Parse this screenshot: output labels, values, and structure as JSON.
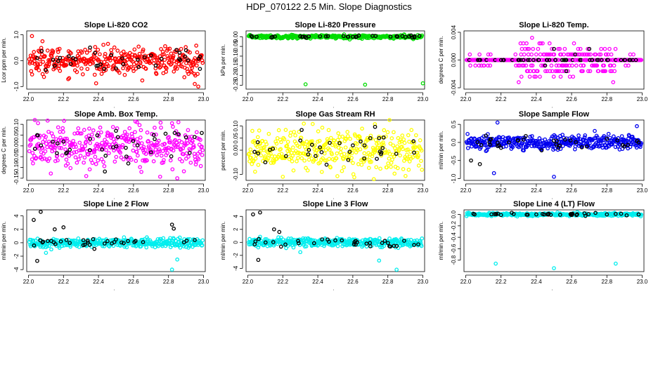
{
  "figure_title": "HDP_070122  2.5 Min. Slope Diagnostics",
  "colors": {
    "black": "#000000"
  },
  "chart_data": [
    {
      "id": "co2",
      "type": "scatter",
      "title": "Slope Li-820 CO2",
      "ylabel": "Lcor ppm per min.",
      "xlim": [
        21.99,
        23.01
      ],
      "ylim": [
        -1.1,
        1.15
      ],
      "xticks": [
        "22.0",
        "22.2",
        "22.4",
        "22.6",
        "22.8",
        "23.0"
      ],
      "yticks": [
        {
          "v": -1,
          "label": "-1.0"
        },
        {
          "v": 0,
          "label": "0.0"
        },
        {
          "v": 1,
          "label": "1.0"
        }
      ],
      "color": "#ff0000",
      "spread": 0.25,
      "center": 0.0,
      "outliers": [
        {
          "x": 22.02,
          "y": 0.95
        },
        {
          "x": 22.95,
          "y": -0.9
        },
        {
          "x": 22.97,
          "y": -1.0
        },
        {
          "x": 22.08,
          "y": 0.75
        },
        {
          "x": 22.55,
          "y": -0.55
        }
      ],
      "black_points": [
        {
          "x": 22.05,
          "y": 0.1
        },
        {
          "x": 22.15,
          "y": -0.2
        },
        {
          "x": 22.38,
          "y": 0.3
        },
        {
          "x": 22.5,
          "y": -0.3
        },
        {
          "x": 22.7,
          "y": 0.2
        },
        {
          "x": 22.9,
          "y": 0.4
        },
        {
          "x": 22.98,
          "y": 0.15
        }
      ]
    },
    {
      "id": "pressure",
      "type": "scatter",
      "title": "Slope Li-820 Pressure",
      "ylabel": "kPa per min.",
      "xlim": [
        21.99,
        23.01
      ],
      "ylim": [
        -0.27,
        0.03
      ],
      "xticks": [
        "22.0",
        "22.2",
        "22.4",
        "22.6",
        "22.8",
        "23.0"
      ],
      "yticks": [
        {
          "v": 0,
          "label": "0.00"
        },
        {
          "v": -0.05,
          "label": "-0.05"
        },
        {
          "v": -0.1,
          "label": "-0.10"
        },
        {
          "v": -0.15,
          "label": "-0.15"
        },
        {
          "v": -0.2,
          "label": "-0.20"
        },
        {
          "v": -0.25,
          "label": "-0.25"
        }
      ],
      "color": "#00dd00",
      "spread": 0.004,
      "center": 0.0,
      "outliers": [
        {
          "x": 22.33,
          "y": -0.245
        },
        {
          "x": 22.67,
          "y": -0.247
        },
        {
          "x": 23.0,
          "y": -0.24
        },
        {
          "x": 22.55,
          "y": 0.012
        },
        {
          "x": 22.25,
          "y": 0.01
        }
      ],
      "black_points": [
        {
          "x": 22.05,
          "y": 0.0
        },
        {
          "x": 22.3,
          "y": 0.002
        },
        {
          "x": 22.6,
          "y": 0.0
        },
        {
          "x": 22.85,
          "y": 0.003
        },
        {
          "x": 22.98,
          "y": 0.004
        }
      ]
    },
    {
      "id": "temp",
      "type": "scatter",
      "title": "Slope Li-820 Temp.",
      "ylabel": "degrees C per min.",
      "xlim": [
        21.99,
        23.01
      ],
      "ylim": [
        -0.0042,
        0.0042
      ],
      "xticks": [
        "22.0",
        "22.2",
        "22.4",
        "22.6",
        "22.8",
        "23.0"
      ],
      "yticks": [
        {
          "v": -0.004,
          "label": "-0.004"
        },
        {
          "v": 0,
          "label": "0.000"
        },
        {
          "v": 0.004,
          "label": "0.004"
        }
      ],
      "color": "#ff00ff",
      "spread": 0.0,
      "center": 0.0,
      "quantized": 0.0008,
      "outliers": [],
      "black_points": [
        {
          "x": 22.5,
          "y": 0.0016
        },
        {
          "x": 22.57,
          "y": -0.0016
        },
        {
          "x": 22.7,
          "y": 0.0016
        },
        {
          "x": 22.45,
          "y": -0.0008
        },
        {
          "x": 22.62,
          "y": 0.0008
        }
      ]
    },
    {
      "id": "ambbox",
      "type": "scatter",
      "title": "Slope Amb. Box Temp.",
      "ylabel": "degrees C per min.",
      "xlim": [
        21.99,
        23.01
      ],
      "ylim": [
        -0.16,
        0.12
      ],
      "xticks": [
        "22.0",
        "22.2",
        "22.4",
        "22.6",
        "22.8",
        "23.0"
      ],
      "yticks": [
        {
          "v": 0.1,
          "label": "0.10"
        },
        {
          "v": 0.05,
          "label": "0.05"
        },
        {
          "v": 0,
          "label": "0.00"
        },
        {
          "v": -0.05,
          "label": "-0.05"
        },
        {
          "v": -0.1,
          "label": "-0.10"
        },
        {
          "v": -0.15,
          "label": "-0.15"
        }
      ],
      "color": "#ff00ff",
      "spread": 0.05,
      "center": 0.0,
      "outliers": [
        {
          "x": 22.33,
          "y": -0.14
        },
        {
          "x": 22.62,
          "y": 0.11
        },
        {
          "x": 22.85,
          "y": -0.15
        }
      ],
      "black_points": [
        {
          "x": 22.05,
          "y": 0.05
        },
        {
          "x": 22.2,
          "y": 0.02
        },
        {
          "x": 22.35,
          "y": -0.02
        },
        {
          "x": 22.5,
          "y": 0.07
        },
        {
          "x": 22.7,
          "y": -0.03
        },
        {
          "x": 22.9,
          "y": 0.04
        },
        {
          "x": 22.99,
          "y": 0.06
        }
      ]
    },
    {
      "id": "rh",
      "type": "scatter",
      "title": "Slope Gas Stream RH",
      "ylabel": "percent per min.",
      "xlim": [
        21.99,
        23.01
      ],
      "ylim": [
        -0.125,
        0.125
      ],
      "xticks": [
        "22.0",
        "22.2",
        "22.4",
        "22.6",
        "22.8",
        "23.0"
      ],
      "yticks": [
        {
          "v": -0.1,
          "label": "-0.10"
        },
        {
          "v": 0,
          "label": "0.00"
        },
        {
          "v": 0.05,
          "label": "0.05"
        },
        {
          "v": 0.1,
          "label": "0.10"
        }
      ],
      "color": "#ffff00",
      "spread": 0.04,
      "center": 0.0,
      "outliers": [
        {
          "x": 22.32,
          "y": 0.11
        },
        {
          "x": 22.72,
          "y": -0.12
        },
        {
          "x": 22.2,
          "y": -0.11
        }
      ],
      "black_points": [
        {
          "x": 22.1,
          "y": -0.05
        },
        {
          "x": 22.3,
          "y": 0.04
        },
        {
          "x": 22.45,
          "y": -0.06
        },
        {
          "x": 22.6,
          "y": 0.02
        },
        {
          "x": 22.75,
          "y": 0.05
        },
        {
          "x": 22.95,
          "y": -0.01
        }
      ]
    },
    {
      "id": "sample",
      "type": "scatter",
      "title": "Slope Sample Flow",
      "ylabel": "ml/min per min.",
      "xlim": [
        21.99,
        23.01
      ],
      "ylim": [
        -1.05,
        0.62
      ],
      "xticks": [
        "22.0",
        "22.2",
        "22.4",
        "22.6",
        "22.8",
        "23.0"
      ],
      "yticks": [
        {
          "v": -1,
          "label": "-1.0"
        },
        {
          "v": -0.5,
          "label": "-0.5"
        },
        {
          "v": 0,
          "label": "0.0"
        },
        {
          "v": 0.5,
          "label": "0.5"
        }
      ],
      "color": "#0000ee",
      "spread": 0.1,
      "center": 0.0,
      "outliers": [
        {
          "x": 22.18,
          "y": 0.55
        },
        {
          "x": 22.5,
          "y": -0.95
        },
        {
          "x": 22.16,
          "y": -0.85
        },
        {
          "x": 22.97,
          "y": 0.45
        }
      ],
      "black_points": [
        {
          "x": 22.03,
          "y": -0.5
        },
        {
          "x": 22.08,
          "y": -0.6
        },
        {
          "x": 22.2,
          "y": -0.15
        },
        {
          "x": 22.5,
          "y": 0.05
        },
        {
          "x": 22.8,
          "y": 0.1
        },
        {
          "x": 22.98,
          "y": 0.0
        }
      ]
    },
    {
      "id": "line2",
      "type": "scatter",
      "title": "Slope Line 2 Flow",
      "ylabel": "ml/min per min.",
      "xlim": [
        21.99,
        23.01
      ],
      "ylim": [
        -4.3,
        4.9
      ],
      "xticks": [
        "22.0",
        "22.2",
        "22.4",
        "22.6",
        "22.8",
        "23.0"
      ],
      "yticks": [
        {
          "v": 4,
          "label": "4"
        },
        {
          "v": 2,
          "label": "2"
        },
        {
          "v": 0,
          "label": "0"
        },
        {
          "v": -2,
          "label": "-2"
        },
        {
          "v": -4,
          "label": "-4"
        }
      ],
      "color": "#00eeee",
      "spread": 0.35,
      "center": 0.0,
      "outliers": [
        {
          "x": 22.82,
          "y": -4.0
        },
        {
          "x": 22.85,
          "y": -2.5
        },
        {
          "x": 22.1,
          "y": -1.5
        }
      ],
      "black_points": [
        {
          "x": 22.03,
          "y": 3.4
        },
        {
          "x": 22.07,
          "y": 4.6
        },
        {
          "x": 22.05,
          "y": -2.7
        },
        {
          "x": 22.15,
          "y": 2.0
        },
        {
          "x": 22.2,
          "y": 2.3
        },
        {
          "x": 22.82,
          "y": 2.7
        },
        {
          "x": 22.83,
          "y": 2.1
        },
        {
          "x": 22.5,
          "y": 0.5
        },
        {
          "x": 22.35,
          "y": -0.3
        },
        {
          "x": 22.95,
          "y": 0.4
        }
      ]
    },
    {
      "id": "line3",
      "type": "scatter",
      "title": "Slope Line 3 Flow",
      "ylabel": "ml/min per min.",
      "xlim": [
        21.99,
        23.01
      ],
      "ylim": [
        -4.5,
        5.0
      ],
      "xticks": [
        "22.0",
        "22.2",
        "22.4",
        "22.6",
        "22.8",
        "23.0"
      ],
      "yticks": [
        {
          "v": 4,
          "label": "4"
        },
        {
          "v": 2,
          "label": "2"
        },
        {
          "v": 0,
          "label": "0"
        },
        {
          "v": -2,
          "label": "-2"
        },
        {
          "v": -4,
          "label": "-4"
        }
      ],
      "color": "#00eeee",
      "spread": 0.35,
      "center": 0.0,
      "outliers": [
        {
          "x": 22.85,
          "y": -4.2
        },
        {
          "x": 22.75,
          "y": -2.8
        },
        {
          "x": 22.3,
          "y": -1.5
        }
      ],
      "black_points": [
        {
          "x": 22.03,
          "y": 4.3
        },
        {
          "x": 22.07,
          "y": 4.6
        },
        {
          "x": 22.06,
          "y": -2.7
        },
        {
          "x": 22.15,
          "y": 2.0
        },
        {
          "x": 22.18,
          "y": 1.6
        },
        {
          "x": 22.5,
          "y": 0.3
        },
        {
          "x": 22.7,
          "y": -0.6
        },
        {
          "x": 22.95,
          "y": -0.4
        }
      ]
    },
    {
      "id": "line4",
      "type": "scatter",
      "title": "Slope Line 4 (LT) Flow",
      "ylabel": "ml/min per min.",
      "xlim": [
        21.99,
        23.01
      ],
      "ylim": [
        -1.0,
        0.08
      ],
      "xticks": [
        "22.0",
        "22.2",
        "22.4",
        "22.6",
        "22.8",
        "23.0"
      ],
      "yticks": [
        {
          "v": 0,
          "label": "0.0"
        },
        {
          "v": -0.2,
          "label": "-0.2"
        },
        {
          "v": -0.4,
          "label": "-0.4"
        },
        {
          "v": -0.6,
          "label": "-0.6"
        },
        {
          "v": -0.8,
          "label": "-0.8"
        }
      ],
      "color": "#00eeee",
      "spread": 0.012,
      "center": 0.0,
      "outliers": [
        {
          "x": 22.17,
          "y": -0.86
        },
        {
          "x": 22.5,
          "y": -0.94
        },
        {
          "x": 22.85,
          "y": -0.86
        }
      ],
      "black_points": [
        {
          "x": 22.05,
          "y": 0.0
        },
        {
          "x": 22.2,
          "y": -0.01
        },
        {
          "x": 22.4,
          "y": 0.0
        },
        {
          "x": 22.6,
          "y": -0.01
        },
        {
          "x": 22.8,
          "y": 0.0
        },
        {
          "x": 22.98,
          "y": 0.0
        }
      ]
    }
  ]
}
